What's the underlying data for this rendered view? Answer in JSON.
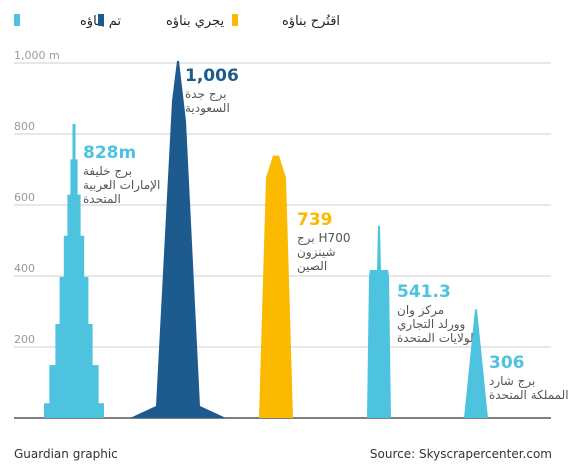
{
  "chart_data": {
    "type": "bar",
    "y_unit": "m",
    "ylim": [
      0,
      1000
    ],
    "yticks": [
      "1,000 m",
      "800",
      "600",
      "400",
      "200"
    ],
    "grid": true,
    "legend_placement": "top",
    "legend": [
      {
        "label": "تم بناؤه",
        "color": "#4ec3e0"
      },
      {
        "label": "يجري بناؤه",
        "color": "#1d5b8f"
      },
      {
        "label": "اقتُرح بناؤه",
        "color": "#fbb900"
      }
    ],
    "buildings": [
      {
        "value": 828,
        "value_label": "828m",
        "name_lines": [
          "برج خليفة",
          "الإمارات العربية",
          "المتحدة"
        ],
        "status": "built",
        "color": "#4ec3e0",
        "shape": "burj"
      },
      {
        "value": 1006,
        "value_label": "1,006",
        "name_lines": [
          "برج جدة",
          "السعودية"
        ],
        "status": "under_construction",
        "color": "#1d5b8f",
        "shape": "jeddah"
      },
      {
        "value": 739,
        "value_label": "739",
        "name_lines": [
          "برج H700",
          "شينزون",
          "الصين"
        ],
        "status": "proposed",
        "color": "#fbb900",
        "shape": "spire"
      },
      {
        "value": 541.3,
        "value_label": "541.3",
        "name_lines": [
          "مركز وان",
          "وورلد التجاري",
          "الولايات المتحدة"
        ],
        "status": "built",
        "color": "#4ec3e0",
        "shape": "wtc"
      },
      {
        "value": 306,
        "value_label": "306",
        "name_lines": [
          "برج شارد",
          "المملكة المتحدة"
        ],
        "status": "built",
        "color": "#4ec3e0",
        "shape": "shard"
      }
    ],
    "value_label_colors": [
      "#4ec3e0",
      "#1d5b8f",
      "#fbb900",
      "#4ec3e0",
      "#4ec3e0"
    ]
  },
  "footer": {
    "credit": "Guardian graphic",
    "source": "Source: Skyscrapercenter.com"
  }
}
